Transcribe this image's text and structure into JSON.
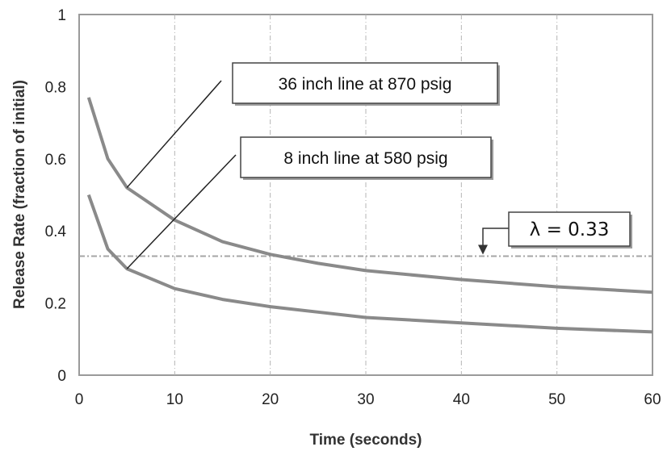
{
  "chart_data": {
    "type": "line",
    "xlabel": "Time (seconds)",
    "ylabel": "Release Rate (fraction of initial)",
    "xlim": [
      0,
      60
    ],
    "ylim": [
      0,
      1
    ],
    "x_ticks": [
      "0",
      "10",
      "20",
      "30",
      "40",
      "50",
      "60"
    ],
    "y_ticks": [
      "0",
      "0.2",
      "0.4",
      "0.6",
      "0.8",
      "1"
    ],
    "grid": "vertical dash-dot lines at x ticks",
    "series": [
      {
        "name": "36 inch line at 870 psig",
        "color": "#8a8a8a",
        "x": [
          1,
          3,
          5,
          10,
          15,
          20,
          25,
          30,
          40,
          50,
          60
        ],
        "y": [
          0.77,
          0.6,
          0.52,
          0.43,
          0.37,
          0.335,
          0.31,
          0.29,
          0.265,
          0.245,
          0.23
        ]
      },
      {
        "name": "8 inch line at 580 psig",
        "color": "#8a8a8a",
        "x": [
          1,
          3,
          5,
          10,
          15,
          20,
          25,
          30,
          40,
          50,
          60
        ],
        "y": [
          0.5,
          0.35,
          0.295,
          0.24,
          0.21,
          0.19,
          0.175,
          0.16,
          0.145,
          0.13,
          0.12
        ]
      }
    ],
    "reference_line": {
      "label": "λ = 0.33",
      "y": 0.33
    },
    "annotations": [
      {
        "text": "36 inch line at 870 psig",
        "target_series": 0,
        "target_x": 5,
        "target_y": 0.52
      },
      {
        "text": "8 inch line at 580 psig",
        "target_series": 1,
        "target_x": 5,
        "target_y": 0.295
      },
      {
        "text": "λ = 0.33",
        "target_x": 42,
        "target_y": 0.33
      }
    ]
  }
}
